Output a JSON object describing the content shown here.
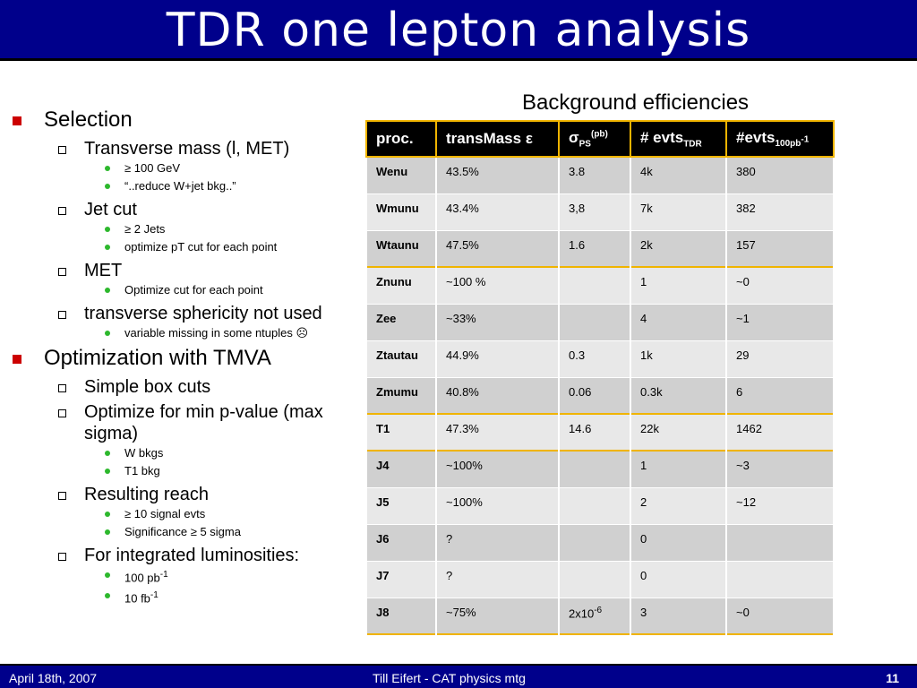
{
  "title": "TDR one lepton analysis",
  "bullets": {
    "selection": "Selection",
    "transverse_mass": "Transverse mass (l, MET)",
    "tm_cut": "≥ 100 GeV",
    "tm_note": "“..reduce W+jet bkg..”",
    "jet_cut": "Jet cut",
    "jc_1": "≥ 2 Jets",
    "jc_2": "optimize pT cut for each point",
    "met": "MET",
    "met_1": "Optimize cut for each point",
    "sphericity": "transverse sphericity not used",
    "sph_1": "variable missing in some ntuples",
    "sad_face": "☹",
    "optimization": "Optimization with TMVA",
    "box_cuts": "Simple box cuts",
    "optimize_p": "Optimize for min p-value (max sigma)",
    "op_1": "W bkgs",
    "op_2": "T1 bkg",
    "reach": "Resulting reach",
    "reach_1": "≥ 10 signal evts",
    "reach_2": "Significance ≥ 5 sigma",
    "lumi": "For integrated luminosities:",
    "lumi_1": "100 pb",
    "lumi_1_exp": "-1",
    "lumi_2": "10 fb",
    "lumi_2_exp": "-1"
  },
  "table": {
    "caption": "Background efficiencies",
    "headers": {
      "proc": "proc.",
      "transmass": "transMass ε",
      "sigma": "σ",
      "sigma_sub": "PS",
      "sigma_sup": "(pb)",
      "evts_tdr": "# evts",
      "evts_tdr_sub": "TDR",
      "evts_100": "#evts",
      "evts_100_sub": "100pb",
      "evts_100_sup": "-1"
    },
    "rows": [
      {
        "proc": "Wenu",
        "eff": "43.5%",
        "sigma": "3.8",
        "sigma_exp": "",
        "tdr": "4k",
        "n100": "380"
      },
      {
        "proc": "Wmunu",
        "eff": "43.4%",
        "sigma": "3,8",
        "sigma_exp": "",
        "tdr": "7k",
        "n100": "382"
      },
      {
        "proc": "Wtaunu",
        "eff": "47.5%",
        "sigma": "1.6",
        "sigma_exp": "",
        "tdr": "2k",
        "n100": "157"
      },
      {
        "proc": "Znunu",
        "eff": "~100 %",
        "sigma": "",
        "sigma_exp": "",
        "tdr": "1",
        "n100": "~0"
      },
      {
        "proc": "Zee",
        "eff": "~33%",
        "sigma": "",
        "sigma_exp": "",
        "tdr": "4",
        "n100": "~1"
      },
      {
        "proc": "Ztautau",
        "eff": "44.9%",
        "sigma": "0.3",
        "sigma_exp": "",
        "tdr": "1k",
        "n100": "29"
      },
      {
        "proc": "Zmumu",
        "eff": "40.8%",
        "sigma": "0.06",
        "sigma_exp": "",
        "tdr": "0.3k",
        "n100": "6"
      },
      {
        "proc": "T1",
        "eff": "47.3%",
        "sigma": "14.6",
        "sigma_exp": "",
        "tdr": "22k",
        "n100": "1462"
      },
      {
        "proc": "J4",
        "eff": "~100%",
        "sigma": "",
        "sigma_exp": "",
        "tdr": "1",
        "n100": "~3"
      },
      {
        "proc": "J5",
        "eff": "~100%",
        "sigma": "",
        "sigma_exp": "",
        "tdr": "2",
        "n100": "~12"
      },
      {
        "proc": "J6",
        "eff": "?",
        "sigma": "",
        "sigma_exp": "",
        "tdr": "0",
        "n100": ""
      },
      {
        "proc": "J7",
        "eff": "?",
        "sigma": "",
        "sigma_exp": "",
        "tdr": "0",
        "n100": ""
      },
      {
        "proc": "J8",
        "eff": "~75%",
        "sigma": "2x10",
        "sigma_exp": "-6",
        "tdr": "3",
        "n100": "~0"
      }
    ]
  },
  "footer": {
    "date": "April 18th, 2007",
    "author": "Till Eifert - CAT physics mtg",
    "page": "11"
  },
  "colors": {
    "title_bg": "#00008b",
    "bullet_l1": "#cc0000",
    "bullet_l3": "#2db82d",
    "table_border": "#f0b400"
  }
}
